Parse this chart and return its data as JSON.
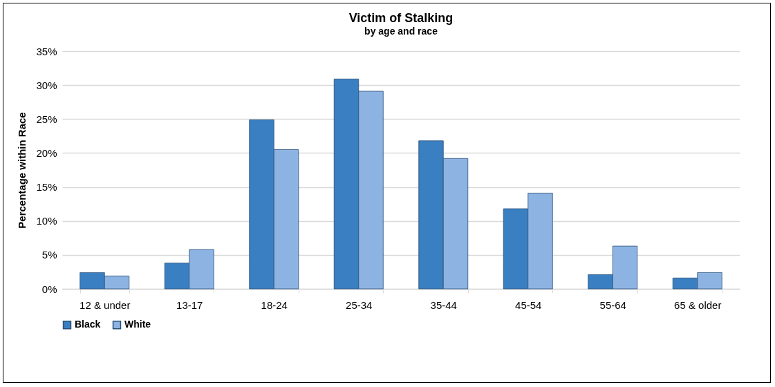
{
  "chart_data": {
    "type": "bar",
    "title": "Victim of Stalking",
    "subtitle": "by age and race",
    "ylabel": "Percentage within Race",
    "categories": [
      "12 & under",
      "13-17",
      "18-24",
      "25-34",
      "35-44",
      "45-54",
      "55-64",
      "65 & older"
    ],
    "series": [
      {
        "name": "Black",
        "color": "#3a7fc1",
        "values": [
          2.4,
          3.8,
          24.9,
          30.9,
          21.8,
          11.8,
          2.1,
          1.6
        ]
      },
      {
        "name": "White",
        "color": "#8db3e2",
        "values": [
          1.9,
          5.8,
          20.5,
          29.1,
          19.2,
          14.1,
          6.3,
          2.4
        ]
      }
    ],
    "ylim": [
      0,
      35
    ],
    "yticks": [
      {
        "value": 0,
        "label": "0%"
      },
      {
        "value": 5,
        "label": "5%"
      },
      {
        "value": 10,
        "label": "10%"
      },
      {
        "value": 15,
        "label": "15%"
      },
      {
        "value": 20,
        "label": "20%"
      },
      {
        "value": 25,
        "label": "25%"
      },
      {
        "value": 30,
        "label": "30%"
      },
      {
        "value": 35,
        "label": "35%"
      }
    ],
    "grid": "y",
    "legend": "bottom"
  }
}
